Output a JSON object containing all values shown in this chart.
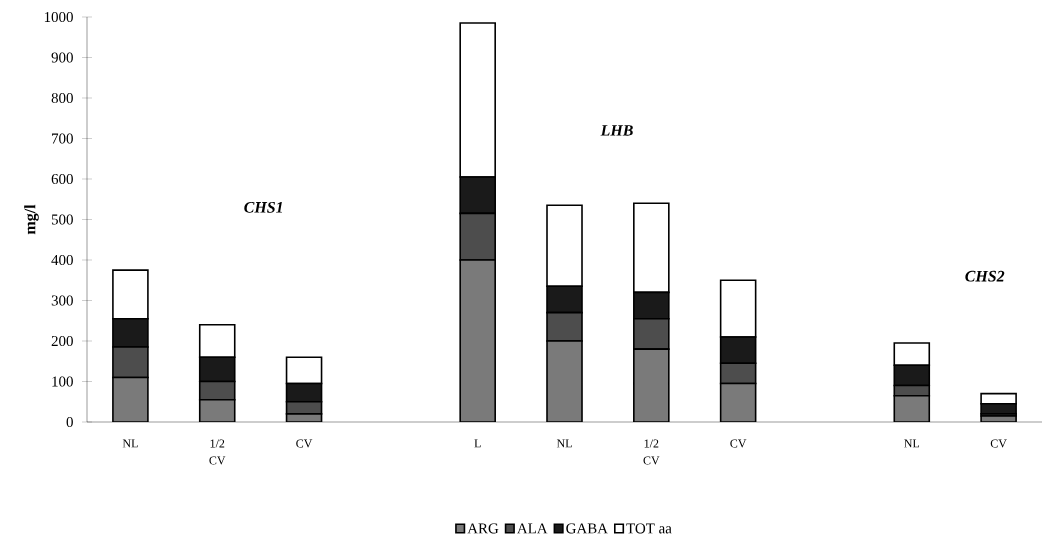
{
  "chart_data": {
    "type": "bar",
    "stacked": true,
    "ylabel": "mg/l",
    "categories": [
      "NL",
      "1/2 CV",
      "CV",
      null,
      "L",
      "NL",
      "1/2 CV",
      "CV",
      null,
      "NL",
      "CV"
    ],
    "series": [
      {
        "name": "ARG",
        "color": "#7a7a7a",
        "values": [
          110,
          55,
          20,
          null,
          400,
          200,
          180,
          95,
          null,
          65,
          15
        ]
      },
      {
        "name": "ALA",
        "color": "#4d4d4d",
        "values": [
          75,
          45,
          30,
          null,
          115,
          70,
          75,
          50,
          null,
          25,
          5
        ]
      },
      {
        "name": "GABA",
        "color": "#1a1a1a",
        "values": [
          70,
          60,
          45,
          null,
          90,
          65,
          65,
          65,
          null,
          50,
          25
        ]
      },
      {
        "name": "TOT aa",
        "color": "#ffffff",
        "values": [
          120,
          80,
          65,
          null,
          380,
          200,
          220,
          140,
          null,
          55,
          25
        ]
      }
    ],
    "ylim": [
      0,
      1000
    ],
    "yticks": [
      0,
      100,
      200,
      300,
      400,
      500,
      600,
      700,
      800,
      900,
      1000
    ],
    "annotations": [
      "CHS1",
      "LHB",
      "CHS2"
    ],
    "legend": "bottom",
    "grid": false
  }
}
